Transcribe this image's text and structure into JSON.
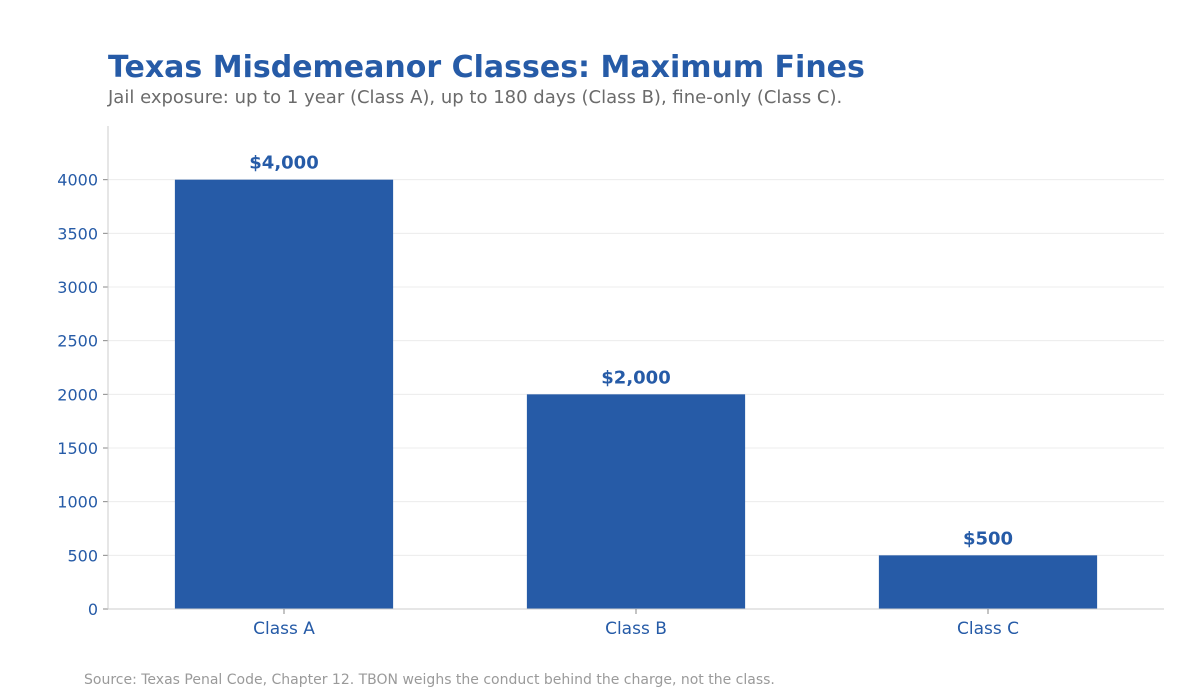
{
  "chart_data": {
    "type": "bar",
    "title": "Texas Misdemeanor Classes: Maximum Fines",
    "subtitle": "Jail exposure: up to 1 year (Class A), up to 180 days (Class B), fine-only (Class C).",
    "categories": [
      "Class A",
      "Class B",
      "Class C"
    ],
    "values": [
      4000,
      2000,
      500
    ],
    "data_labels": [
      "$4,000",
      "$2,000",
      "$500"
    ],
    "xlabel": "",
    "ylabel": "",
    "ylim": [
      0,
      4500
    ],
    "yticks": [
      0,
      500,
      1000,
      1500,
      2000,
      2500,
      3000,
      3500,
      4000
    ],
    "grid": "horizontal",
    "legend": "none",
    "bar_color": "#265ba7"
  },
  "source_note": "Source: Texas Penal Code, Chapter 12. TBON weighs the conduct behind the charge, not the class."
}
